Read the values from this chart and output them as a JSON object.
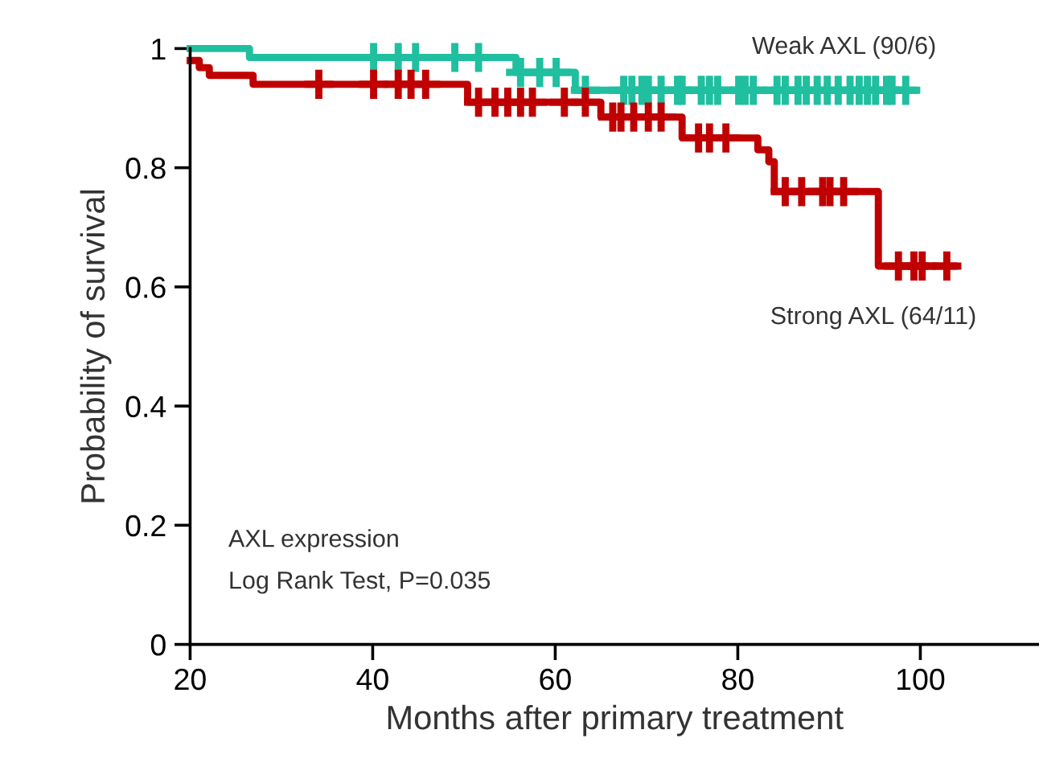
{
  "chart_data": {
    "type": "step",
    "xlabel": "Months after primary treatment",
    "ylabel": "Probability of survival",
    "xlim": [
      20,
      113
    ],
    "ylim": [
      0,
      1
    ],
    "xticks": [
      20,
      40,
      60,
      80,
      100
    ],
    "yticks": [
      0,
      {
        "value": 0.2,
        "label": "0.2"
      },
      {
        "value": 0.4,
        "label": "0.4"
      },
      {
        "value": 0.6,
        "label": "0.6"
      },
      {
        "value": 0.8,
        "label": "0.8"
      },
      1
    ],
    "grid": false,
    "legend": false,
    "annotations": [
      "AXL expression",
      "Log Rank Test, P=0.035"
    ],
    "series": [
      {
        "name": "Weak AXL (90/6)",
        "color": "#1fbf9f",
        "marker": "none",
        "x": [
          20,
          26.5,
          55.7,
          62.2,
          99.3
        ],
        "values": [
          1,
          0.985,
          0.96,
          0.93,
          0.93
        ]
      },
      {
        "name": "Strong AXL (64/11)",
        "color": "#c00000",
        "marker": "none",
        "x": [
          20,
          21,
          22.1,
          26.9,
          50.4,
          65,
          73.9,
          82.2,
          83.4,
          84,
          95.4,
          103.7
        ],
        "values": [
          0.98,
          0.968,
          0.955,
          0.94,
          0.91,
          0.885,
          0.85,
          0.83,
          0.81,
          0.76,
          0.635,
          0.635
        ]
      },
      {
        "color": "#1fbf9f",
        "type": "scatter",
        "marker": "cross",
        "x": [
          40.1,
          42.8,
          44.7,
          49.0,
          51.6,
          56.2,
          58.3,
          60.1,
          63.3,
          67.5,
          68.4,
          69.5,
          70.2,
          71.6,
          73.4,
          73.9,
          76.0,
          76.9,
          77.8,
          80.1,
          80.8,
          81.7,
          84.3,
          85.2,
          86.6,
          87.5,
          88.7,
          89.8,
          91.0,
          92.3,
          93.3,
          94.2,
          95.1,
          96.3,
          96.9,
          98.4
        ],
        "values": [
          0.985,
          0.985,
          0.985,
          0.985,
          0.985,
          0.96,
          0.96,
          0.96,
          0.93,
          0.93,
          0.93,
          0.93,
          0.93,
          0.93,
          0.93,
          0.93,
          0.93,
          0.93,
          0.93,
          0.93,
          0.93,
          0.93,
          0.93,
          0.93,
          0.93,
          0.93,
          0.93,
          0.93,
          0.93,
          0.93,
          0.93,
          0.93,
          0.93,
          0.93,
          0.93,
          0.93
        ]
      },
      {
        "color": "#c00000",
        "type": "scatter",
        "marker": "cross",
        "x": [
          34.1,
          40.1,
          42.8,
          44.2,
          45.8,
          51.6,
          53.4,
          54.8,
          56.2,
          57.5,
          61.0,
          63.3,
          66.3,
          67.2,
          68.6,
          70.2,
          71.6,
          75.7,
          76.9,
          78.7,
          85.2,
          87.0,
          89.3,
          90.1,
          91.6,
          97.6,
          99.3,
          100.2,
          102.9
        ],
        "values": [
          0.94,
          0.94,
          0.94,
          0.94,
          0.94,
          0.91,
          0.91,
          0.91,
          0.91,
          0.91,
          0.91,
          0.91,
          0.885,
          0.885,
          0.885,
          0.885,
          0.885,
          0.85,
          0.85,
          0.85,
          0.76,
          0.76,
          0.76,
          0.76,
          0.76,
          0.635,
          0.635,
          0.635,
          0.635
        ]
      }
    ]
  }
}
